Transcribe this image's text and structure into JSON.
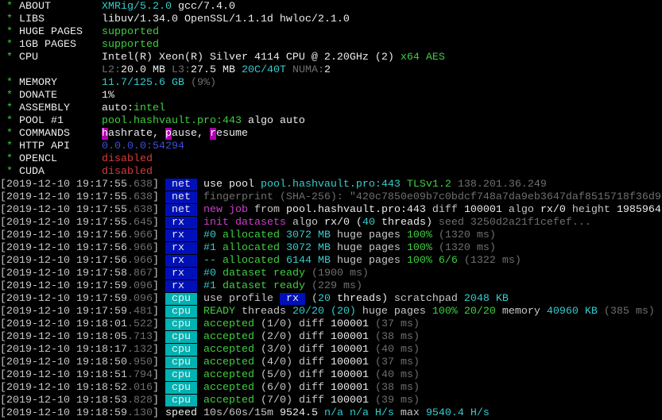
{
  "colors": {
    "net_tag_bg": "#0010b8",
    "rx_tag_bg": "#0010b8",
    "cpu_tag_bg": "#00b2b2",
    "cyan": "#35cccc",
    "green": "#3fcf3f",
    "red": "#d83a3a",
    "blue": "#3b4fe0",
    "magenta": "#cc3fcc",
    "gray": "#6f6f6f"
  },
  "lines": [
    [
      [
        " * ",
        "G"
      ],
      [
        "ABOUT        ",
        "W"
      ],
      [
        "XMRig/5.2.0",
        "c"
      ],
      [
        " gcc/7.4.0",
        "W"
      ]
    ],
    [
      [
        " * ",
        "G"
      ],
      [
        "LIBS         ",
        "W"
      ],
      [
        "libuv/1.34.0 OpenSSL/1.1.1d hwloc/2.1.0",
        "W"
      ]
    ],
    [
      [
        " * ",
        "G"
      ],
      [
        "HUGE PAGES   ",
        "W"
      ],
      [
        "supported",
        "G"
      ]
    ],
    [
      [
        " * ",
        "G"
      ],
      [
        "1GB PAGES    ",
        "W"
      ],
      [
        "supported",
        "G"
      ]
    ],
    [
      [
        " * ",
        "G"
      ],
      [
        "CPU          ",
        "W"
      ],
      [
        "Intel(R) Xeon(R) Silver 4114 CPU @ 2.20GHz (2)",
        "W"
      ],
      [
        " x64 AES",
        "G"
      ]
    ],
    [
      [
        "                ",
        "w"
      ],
      [
        "L2:",
        "g"
      ],
      [
        "20.0 MB ",
        "W"
      ],
      [
        "L3:",
        "g"
      ],
      [
        "27.5 MB ",
        "W"
      ],
      [
        "20C/40T",
        "c"
      ],
      [
        " NUMA:",
        "g"
      ],
      [
        "2",
        "W"
      ]
    ],
    [
      [
        " * ",
        "G"
      ],
      [
        "MEMORY       ",
        "W"
      ],
      [
        "11.7/125.6 GB",
        "c"
      ],
      [
        " (9%)",
        "g"
      ]
    ],
    [
      [
        " * ",
        "G"
      ],
      [
        "DONATE       ",
        "W"
      ],
      [
        "1%",
        "W"
      ]
    ],
    [
      [
        " * ",
        "G"
      ],
      [
        "ASSEMBLY     ",
        "W"
      ],
      [
        "auto:",
        "W"
      ],
      [
        "intel",
        "G"
      ]
    ],
    [
      [
        " * ",
        "G"
      ],
      [
        "POOL #1      ",
        "W"
      ],
      [
        "pool.hashvault.pro:443",
        "G"
      ],
      [
        " algo auto",
        "W"
      ]
    ],
    [
      [
        " * ",
        "G"
      ],
      [
        "COMMANDS     ",
        "W"
      ],
      [
        "h",
        "hm"
      ],
      [
        "ashrate, ",
        "W"
      ],
      [
        "p",
        "hm"
      ],
      [
        "ause, ",
        "W"
      ],
      [
        "r",
        "hm"
      ],
      [
        "esume",
        "W"
      ]
    ],
    [
      [
        " * ",
        "G"
      ],
      [
        "HTTP API     ",
        "W"
      ],
      [
        "0.0.0.0:54294",
        "b"
      ]
    ],
    [
      [
        " * ",
        "G"
      ],
      [
        "OPENCL       ",
        "W"
      ],
      [
        "disabled",
        "r"
      ]
    ],
    [
      [
        " * ",
        "G"
      ],
      [
        "CUDA         ",
        "W"
      ],
      [
        "disabled",
        "r"
      ]
    ],
    [
      [
        "[2019-12-10 19:17:55",
        "w"
      ],
      [
        ".638",
        "g"
      ],
      [
        "] ",
        "w"
      ],
      [
        " net ",
        "tnet"
      ],
      [
        " use pool ",
        "W"
      ],
      [
        "pool.hashvault.pro:443 ",
        "c"
      ],
      [
        "TLSv1.2",
        "G"
      ],
      [
        " 138.201.36.249",
        "g"
      ]
    ],
    [
      [
        "[2019-12-10 19:17:55",
        "w"
      ],
      [
        ".638",
        "g"
      ],
      [
        "] ",
        "w"
      ],
      [
        " net ",
        "tnet"
      ],
      [
        " fingerprint (SHA-256): \"420c7850e09b7c0bdcf748a7da9eb3647daf8515718f36d9",
        "g"
      ]
    ],
    [
      [
        "[2019-12-10 19:17:55",
        "w"
      ],
      [
        ".638",
        "g"
      ],
      [
        "] ",
        "w"
      ],
      [
        " net ",
        "tnet"
      ],
      [
        " new job",
        "m"
      ],
      [
        " from ",
        "w"
      ],
      [
        "pool.hashvault.pro:443",
        "W"
      ],
      [
        " diff ",
        "w"
      ],
      [
        "100001",
        "W"
      ],
      [
        " algo ",
        "w"
      ],
      [
        "rx/0",
        "W"
      ],
      [
        " height ",
        "w"
      ],
      [
        "1985964",
        "W"
      ]
    ],
    [
      [
        "[2019-12-10 19:17:55",
        "w"
      ],
      [
        ".645",
        "g"
      ],
      [
        "] ",
        "w"
      ],
      [
        " rx  ",
        "trx"
      ],
      [
        " init datasets",
        "m"
      ],
      [
        " algo ",
        "w"
      ],
      [
        "rx/0",
        "W"
      ],
      [
        " (",
        "W"
      ],
      [
        "40",
        "c"
      ],
      [
        " threads)",
        "W"
      ],
      [
        " seed 3250d2a21f1cefef...",
        "g"
      ]
    ],
    [
      [
        "[2019-12-10 19:17:56",
        "w"
      ],
      [
        ".966",
        "g"
      ],
      [
        "] ",
        "w"
      ],
      [
        " rx  ",
        "trx"
      ],
      [
        " #0",
        "c"
      ],
      [
        " allocated ",
        "G"
      ],
      [
        "3072 MB",
        "c"
      ],
      [
        " huge pages ",
        "w"
      ],
      [
        "100%",
        "G"
      ],
      [
        " (1320 ms)",
        "g"
      ]
    ],
    [
      [
        "[2019-12-10 19:17:56",
        "w"
      ],
      [
        ".966",
        "g"
      ],
      [
        "] ",
        "w"
      ],
      [
        " rx  ",
        "trx"
      ],
      [
        " #1",
        "c"
      ],
      [
        " allocated ",
        "G"
      ],
      [
        "3072 MB",
        "c"
      ],
      [
        " huge pages ",
        "w"
      ],
      [
        "100%",
        "G"
      ],
      [
        " (1320 ms)",
        "g"
      ]
    ],
    [
      [
        "[2019-12-10 19:17:56",
        "w"
      ],
      [
        ".966",
        "g"
      ],
      [
        "] ",
        "w"
      ],
      [
        " rx  ",
        "trx"
      ],
      [
        " --",
        "c"
      ],
      [
        " allocated ",
        "G"
      ],
      [
        "6144 MB",
        "c"
      ],
      [
        " huge pages ",
        "w"
      ],
      [
        "100% 6/6",
        "G"
      ],
      [
        " (1322 ms)",
        "g"
      ]
    ],
    [
      [
        "[2019-12-10 19:17:58",
        "w"
      ],
      [
        ".867",
        "g"
      ],
      [
        "] ",
        "w"
      ],
      [
        " rx  ",
        "trx"
      ],
      [
        " #0",
        "c"
      ],
      [
        " dataset ready",
        "G"
      ],
      [
        " (1900 ms)",
        "g"
      ]
    ],
    [
      [
        "[2019-12-10 19:17:59",
        "w"
      ],
      [
        ".096",
        "g"
      ],
      [
        "] ",
        "w"
      ],
      [
        " rx  ",
        "trx"
      ],
      [
        " #1",
        "c"
      ],
      [
        " dataset ready",
        "G"
      ],
      [
        " (229 ms)",
        "g"
      ]
    ],
    [
      [
        "[2019-12-10 19:17:59",
        "w"
      ],
      [
        ".096",
        "g"
      ],
      [
        "] ",
        "w"
      ],
      [
        " cpu ",
        "tcpu"
      ],
      [
        " use profile ",
        "w"
      ],
      [
        " rx ",
        "trx"
      ],
      [
        " (",
        "w"
      ],
      [
        "20",
        "c"
      ],
      [
        " threads)",
        "W"
      ],
      [
        " scratchpad ",
        "w"
      ],
      [
        "2048 KB",
        "c"
      ]
    ],
    [
      [
        "[2019-12-10 19:17:59",
        "w"
      ],
      [
        ".481",
        "g"
      ],
      [
        "] ",
        "w"
      ],
      [
        " cpu ",
        "tcpu"
      ],
      [
        " READY",
        "G"
      ],
      [
        " threads ",
        "w"
      ],
      [
        "20/20 (20)",
        "c"
      ],
      [
        " huge pages ",
        "w"
      ],
      [
        "100% 20/20",
        "G"
      ],
      [
        " memory ",
        "w"
      ],
      [
        "40960 KB",
        "c"
      ],
      [
        " (385 ms)",
        "g"
      ]
    ],
    [
      [
        "[2019-12-10 19:18:01",
        "w"
      ],
      [
        ".522",
        "g"
      ],
      [
        "] ",
        "w"
      ],
      [
        " cpu ",
        "tcpu"
      ],
      [
        " accepted",
        "G"
      ],
      [
        " (1/0)",
        "w"
      ],
      [
        " diff ",
        "w"
      ],
      [
        "100001",
        "W"
      ],
      [
        " (37 ms)",
        "g"
      ]
    ],
    [
      [
        "[2019-12-10 19:18:05",
        "w"
      ],
      [
        ".713",
        "g"
      ],
      [
        "] ",
        "w"
      ],
      [
        " cpu ",
        "tcpu"
      ],
      [
        " accepted",
        "G"
      ],
      [
        " (2/0)",
        "w"
      ],
      [
        " diff ",
        "w"
      ],
      [
        "100001",
        "W"
      ],
      [
        " (38 ms)",
        "g"
      ]
    ],
    [
      [
        "[2019-12-10 19:18:17",
        "w"
      ],
      [
        ".132",
        "g"
      ],
      [
        "] ",
        "w"
      ],
      [
        " cpu ",
        "tcpu"
      ],
      [
        " accepted",
        "G"
      ],
      [
        " (3/0)",
        "w"
      ],
      [
        " diff ",
        "w"
      ],
      [
        "100001",
        "W"
      ],
      [
        " (40 ms)",
        "g"
      ]
    ],
    [
      [
        "[2019-12-10 19:18:50",
        "w"
      ],
      [
        ".950",
        "g"
      ],
      [
        "] ",
        "w"
      ],
      [
        " cpu ",
        "tcpu"
      ],
      [
        " accepted",
        "G"
      ],
      [
        " (4/0)",
        "w"
      ],
      [
        " diff ",
        "w"
      ],
      [
        "100001",
        "W"
      ],
      [
        " (37 ms)",
        "g"
      ]
    ],
    [
      [
        "[2019-12-10 19:18:51",
        "w"
      ],
      [
        ".794",
        "g"
      ],
      [
        "] ",
        "w"
      ],
      [
        " cpu ",
        "tcpu"
      ],
      [
        " accepted",
        "G"
      ],
      [
        " (5/0)",
        "w"
      ],
      [
        " diff ",
        "w"
      ],
      [
        "100001",
        "W"
      ],
      [
        " (40 ms)",
        "g"
      ]
    ],
    [
      [
        "[2019-12-10 19:18:52",
        "w"
      ],
      [
        ".016",
        "g"
      ],
      [
        "] ",
        "w"
      ],
      [
        " cpu ",
        "tcpu"
      ],
      [
        " accepted",
        "G"
      ],
      [
        " (6/0)",
        "w"
      ],
      [
        " diff ",
        "w"
      ],
      [
        "100001",
        "W"
      ],
      [
        " (38 ms)",
        "g"
      ]
    ],
    [
      [
        "[2019-12-10 19:18:53",
        "w"
      ],
      [
        ".828",
        "g"
      ],
      [
        "] ",
        "w"
      ],
      [
        " cpu ",
        "tcpu"
      ],
      [
        " accepted",
        "G"
      ],
      [
        " (7/0)",
        "w"
      ],
      [
        " diff ",
        "w"
      ],
      [
        "100001",
        "W"
      ],
      [
        " (39 ms)",
        "g"
      ]
    ],
    [
      [
        "[2019-12-10 19:18:59",
        "w"
      ],
      [
        ".130",
        "g"
      ],
      [
        "] ",
        "w"
      ],
      [
        "speed",
        "W"
      ],
      [
        " 10s/60s/15m ",
        "w"
      ],
      [
        "9524.5",
        "W"
      ],
      [
        " n/a n/a H/s",
        "c"
      ],
      [
        " max ",
        "w"
      ],
      [
        "9540.4 H/s",
        "c"
      ]
    ]
  ]
}
